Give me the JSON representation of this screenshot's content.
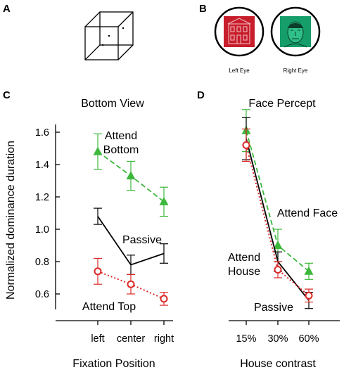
{
  "panels": {
    "a": {
      "letter": "A"
    },
    "b": {
      "letter": "B",
      "left_eye_label": "Left Eye",
      "right_eye_label": "Right Eye"
    },
    "c": {
      "letter": "C"
    },
    "d": {
      "letter": "D"
    }
  },
  "colors": {
    "green": "#3db83d",
    "red": "#dd2a2a",
    "black": "#000000",
    "red_image": "#c81e2c",
    "green_image": "#159e6a"
  },
  "chart_data": [
    {
      "type": "line",
      "title": "Bottom View",
      "xlabel": "Fixation Position",
      "ylabel": "Normalized dominance duration",
      "categories": [
        "left",
        "center",
        "right"
      ],
      "ylim": [
        0.5,
        1.75
      ],
      "yticks": [
        "1.6",
        "1.4",
        "1.2",
        "1.0",
        "0.8",
        "0.6"
      ],
      "series": [
        {
          "name": "Attend Bottom",
          "name_lines": [
            "Attend",
            "Bottom"
          ],
          "color": "#3db83d",
          "style": "dashed",
          "marker": "filled-triangle",
          "values": [
            1.48,
            1.33,
            1.17
          ],
          "errors": [
            0.11,
            0.09,
            0.09
          ]
        },
        {
          "name": "Passive",
          "name_lines": [
            "Passive"
          ],
          "color": "#000000",
          "style": "solid",
          "marker": "none",
          "values": [
            1.08,
            0.78,
            0.85
          ],
          "errors": [
            0.05,
            0.06,
            0.06
          ]
        },
        {
          "name": "Attend Top",
          "name_lines": [
            "Attend Top"
          ],
          "color": "#dd2a2a",
          "style": "dotted",
          "marker": "open-circle",
          "values": [
            0.74,
            0.66,
            0.57
          ],
          "errors": [
            0.08,
            0.06,
            0.04
          ]
        }
      ]
    },
    {
      "type": "line",
      "title": "Face Percept",
      "xlabel": "House contrast",
      "ylabel": "",
      "categories": [
        "15%",
        "30%",
        "60%"
      ],
      "ylim": [
        0.5,
        1.75
      ],
      "series": [
        {
          "name": "Attend Face",
          "name_lines": [
            "Attend Face"
          ],
          "color": "#3db83d",
          "style": "dashed",
          "marker": "filled-triangle",
          "values": [
            1.61,
            0.9,
            0.74
          ],
          "errors": [
            0.13,
            0.1,
            0.05
          ]
        },
        {
          "name": "Passive",
          "name_lines": [
            "Passive"
          ],
          "color": "#000000",
          "style": "solid",
          "marker": "none",
          "values": [
            1.56,
            0.8,
            0.56
          ],
          "errors": [
            0.13,
            0.06,
            0.05
          ]
        },
        {
          "name": "Attend House",
          "name_lines": [
            "Attend",
            "House"
          ],
          "color": "#dd2a2a",
          "style": "dotted",
          "marker": "open-circle",
          "values": [
            1.52,
            0.75,
            0.59
          ],
          "errors": [
            0.1,
            0.05,
            0.04
          ]
        }
      ]
    }
  ]
}
